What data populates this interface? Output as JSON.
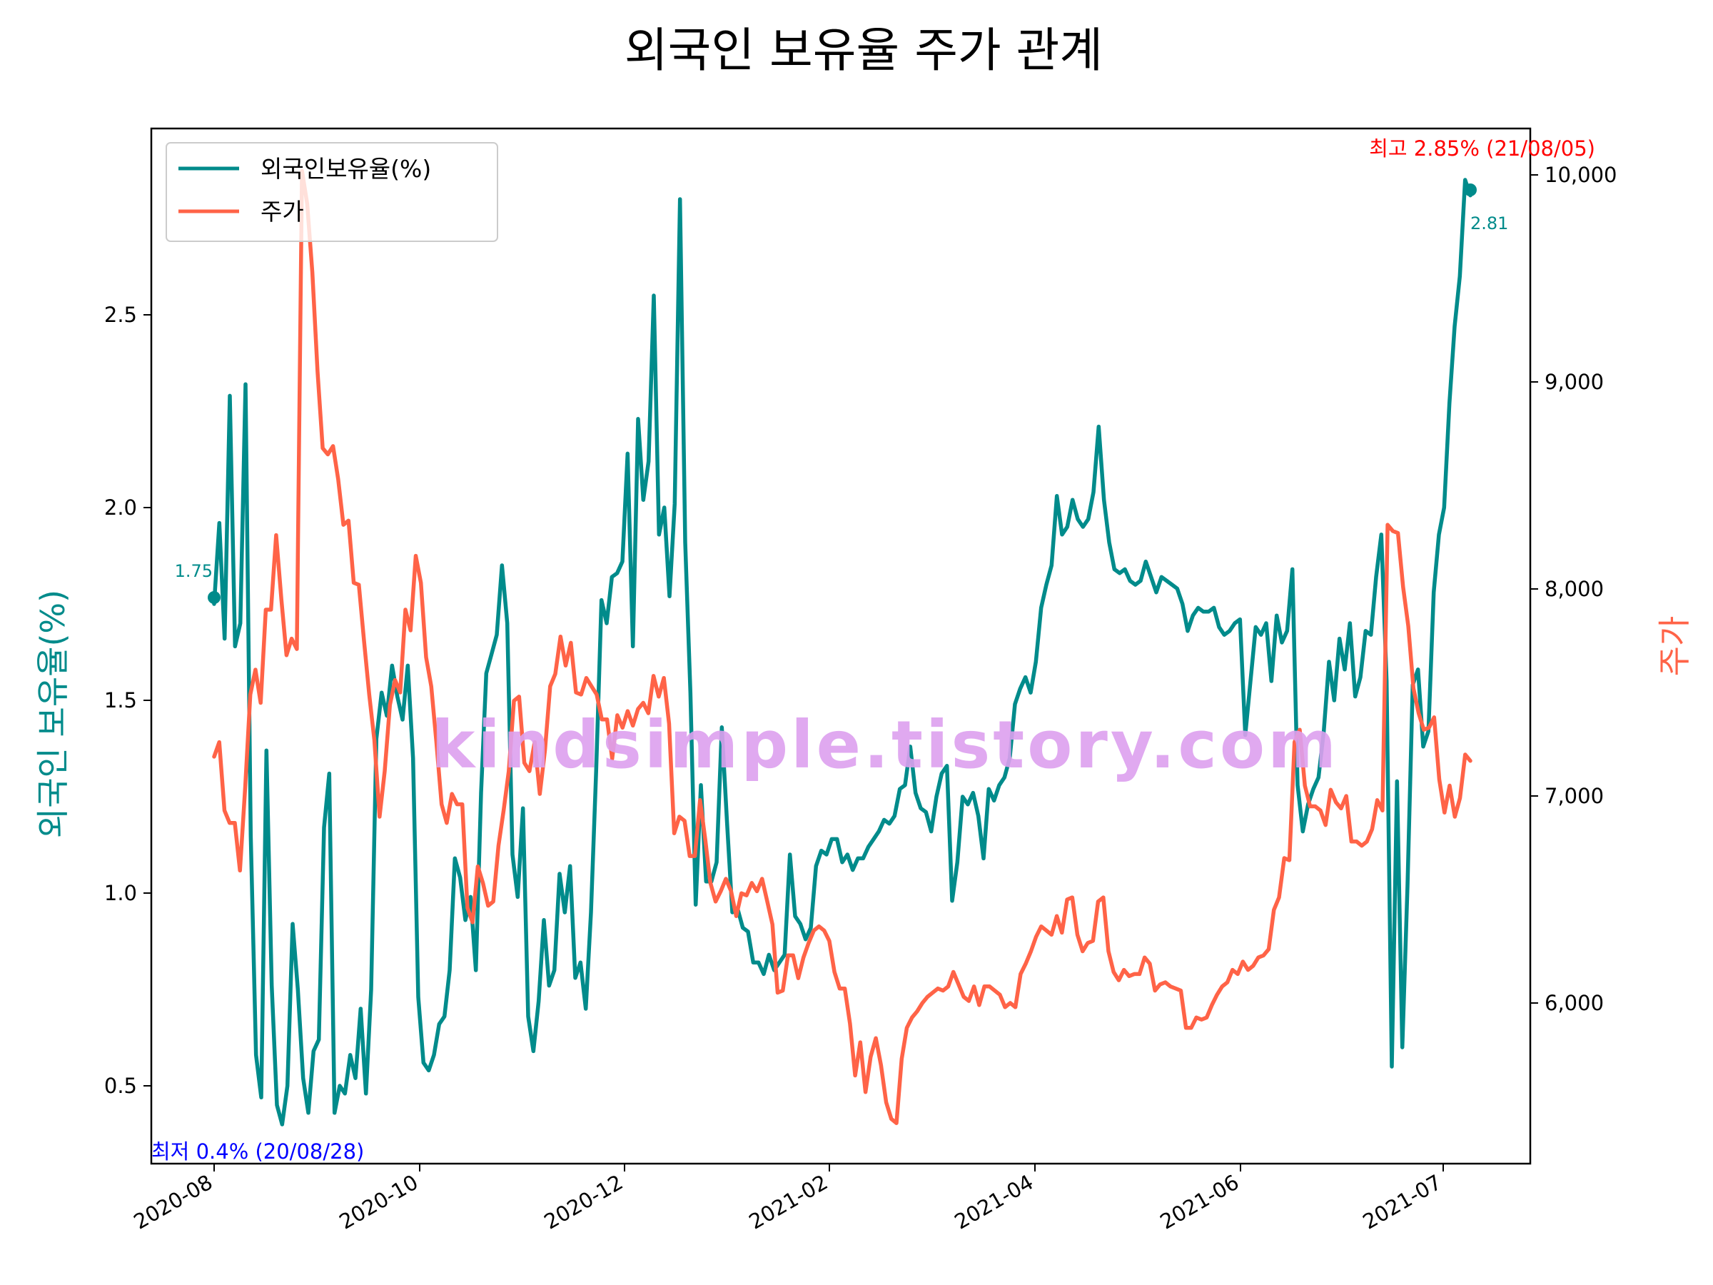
{
  "chart_data": {
    "type": "line",
    "title": "외국인 보유율 주가 관계",
    "y_left_label": "외국인 보유율(%)",
    "y_right_label": "주가",
    "x_tick_labels": [
      "2020-08",
      "2020-10",
      "2020-12",
      "2021-02",
      "2021-04",
      "2021-06",
      "2021-07"
    ],
    "y_left_ticks": [
      "0.5",
      "1.0",
      "1.5",
      "2.0",
      "2.5"
    ],
    "y_right_ticks": [
      "6,000",
      "7,000",
      "8,000",
      "9,000",
      "10,000"
    ],
    "legend_position": "upper-left",
    "grid": false,
    "colors": {
      "foreign": "#008b8b",
      "price": "#ff6347",
      "max_note": "#ff0000",
      "min_note": "#0000ff",
      "watermark": "#dda0ee"
    },
    "annotations": {
      "start_value": "1.75",
      "end_value": "2.81",
      "max_note": "최고 2.85% (21/08/05)",
      "min_note": "최저 0.4% (20/08/28)"
    },
    "watermark": "kindsimple.tistory.com",
    "series": [
      {
        "name": "외국인보유율(%)",
        "axis": "left",
        "values": [
          1.75,
          1.96,
          1.66,
          2.29,
          1.64,
          1.7,
          2.32,
          1.15,
          0.58,
          0.47,
          1.37,
          0.76,
          0.45,
          0.4,
          0.5,
          0.92,
          0.75,
          0.52,
          0.43,
          0.59,
          0.62,
          1.17,
          1.31,
          0.43,
          0.5,
          0.48,
          0.58,
          0.52,
          0.7,
          0.48,
          0.75,
          1.4,
          1.52,
          1.46,
          1.59,
          1.51,
          1.45,
          1.59,
          1.35,
          0.73,
          0.56,
          0.54,
          0.58,
          0.66,
          0.68,
          0.8,
          1.09,
          1.04,
          0.93,
          0.99,
          0.8,
          1.26,
          1.57,
          1.62,
          1.67,
          1.85,
          1.7,
          1.1,
          0.99,
          1.22,
          0.68,
          0.59,
          0.72,
          0.93,
          0.76,
          0.8,
          1.05,
          0.95,
          1.07,
          0.78,
          0.82,
          0.7,
          0.95,
          1.32,
          1.76,
          1.7,
          1.82,
          1.83,
          1.86,
          2.14,
          1.64,
          2.23,
          2.02,
          2.12,
          2.55,
          1.93,
          2.0,
          1.77,
          2.01,
          2.8,
          1.91,
          1.52,
          0.97,
          1.28,
          1.03,
          1.03,
          1.08,
          1.43,
          1.18,
          0.95,
          0.96,
          0.91,
          0.9,
          0.82,
          0.82,
          0.79,
          0.84,
          0.8,
          0.82,
          0.84,
          1.1,
          0.94,
          0.92,
          0.88,
          0.91,
          1.07,
          1.11,
          1.1,
          1.14,
          1.14,
          1.08,
          1.1,
          1.06,
          1.09,
          1.09,
          1.12,
          1.14,
          1.16,
          1.19,
          1.18,
          1.2,
          1.27,
          1.28,
          1.38,
          1.26,
          1.22,
          1.21,
          1.16,
          1.25,
          1.31,
          1.33,
          0.98,
          1.08,
          1.25,
          1.23,
          1.26,
          1.2,
          1.09,
          1.27,
          1.24,
          1.28,
          1.3,
          1.35,
          1.49,
          1.53,
          1.56,
          1.52,
          1.6,
          1.74,
          1.8,
          1.85,
          2.03,
          1.93,
          1.95,
          2.02,
          1.97,
          1.95,
          1.97,
          2.04,
          2.21,
          2.02,
          1.91,
          1.84,
          1.83,
          1.84,
          1.81,
          1.8,
          1.81,
          1.86,
          1.82,
          1.78,
          1.82,
          1.81,
          1.8,
          1.79,
          1.75,
          1.68,
          1.72,
          1.74,
          1.73,
          1.73,
          1.74,
          1.69,
          1.67,
          1.68,
          1.7,
          1.71,
          1.41,
          1.55,
          1.69,
          1.67,
          1.7,
          1.55,
          1.72,
          1.65,
          1.68,
          1.84,
          1.28,
          1.16,
          1.23,
          1.27,
          1.3,
          1.42,
          1.6,
          1.5,
          1.66,
          1.58,
          1.7,
          1.51,
          1.56,
          1.68,
          1.67,
          1.82,
          1.93,
          1.55,
          0.55,
          1.29,
          0.6,
          1.02,
          1.54,
          1.58,
          1.38,
          1.42,
          1.78,
          1.93,
          2.0,
          2.27,
          2.47,
          2.6,
          2.85,
          2.81
        ]
      },
      {
        "name": "주가",
        "axis": "right",
        "values": [
          7190,
          7260,
          6930,
          6870,
          6870,
          6640,
          7040,
          7490,
          7610,
          7450,
          7900,
          7900,
          8260,
          7950,
          7680,
          7760,
          7710,
          10020,
          9860,
          9530,
          9050,
          8680,
          8650,
          8690,
          8530,
          8310,
          8330,
          8030,
          8020,
          7750,
          7490,
          7270,
          6900,
          7120,
          7440,
          7560,
          7500,
          7900,
          7800,
          8160,
          8030,
          7670,
          7530,
          7260,
          6960,
          6870,
          7010,
          6960,
          6960,
          6460,
          6390,
          6660,
          6580,
          6470,
          6490,
          6760,
          6930,
          7120,
          7460,
          7480,
          7160,
          7120,
          7260,
          7010,
          7220,
          7530,
          7590,
          7770,
          7630,
          7740,
          7500,
          7490,
          7570,
          7530,
          7490,
          7370,
          7370,
          7180,
          7390,
          7330,
          7410,
          7340,
          7420,
          7450,
          7400,
          7580,
          7480,
          7570,
          7350,
          6820,
          6900,
          6880,
          6710,
          6710,
          6980,
          6790,
          6580,
          6490,
          6540,
          6600,
          6540,
          6420,
          6530,
          6520,
          6580,
          6540,
          6600,
          6490,
          6380,
          6050,
          6060,
          6230,
          6230,
          6120,
          6220,
          6290,
          6350,
          6370,
          6350,
          6300,
          6150,
          6070,
          6070,
          5900,
          5650,
          5810,
          5570,
          5740,
          5830,
          5700,
          5520,
          5440,
          5420,
          5730,
          5880,
          5930,
          5960,
          6000,
          6030,
          6050,
          6070,
          6060,
          6080,
          6150,
          6090,
          6030,
          6010,
          6080,
          5990,
          6080,
          6080,
          6060,
          6040,
          5980,
          6000,
          5980,
          6140,
          6190,
          6250,
          6320,
          6370,
          6350,
          6330,
          6420,
          6340,
          6500,
          6510,
          6330,
          6250,
          6290,
          6300,
          6490,
          6510,
          6250,
          6150,
          6110,
          6160,
          6130,
          6140,
          6140,
          6220,
          6190,
          6060,
          6090,
          6100,
          6080,
          6070,
          6060,
          5880,
          5880,
          5930,
          5920,
          5930,
          5990,
          6040,
          6080,
          6100,
          6160,
          6140,
          6200,
          6160,
          6180,
          6220,
          6230,
          6260,
          6450,
          6510,
          6700,
          6690,
          7260,
          7320,
          7050,
          6950,
          6950,
          6930,
          6860,
          7030,
          6970,
          6940,
          7000,
          6780,
          6780,
          6760,
          6780,
          6840,
          6980,
          6930,
          8310,
          8280,
          8270,
          8010,
          7820,
          7520,
          7400,
          7320,
          7330,
          7380,
          7080,
          6920,
          7050,
          6900,
          6990,
          7200,
          7170
        ]
      }
    ]
  }
}
